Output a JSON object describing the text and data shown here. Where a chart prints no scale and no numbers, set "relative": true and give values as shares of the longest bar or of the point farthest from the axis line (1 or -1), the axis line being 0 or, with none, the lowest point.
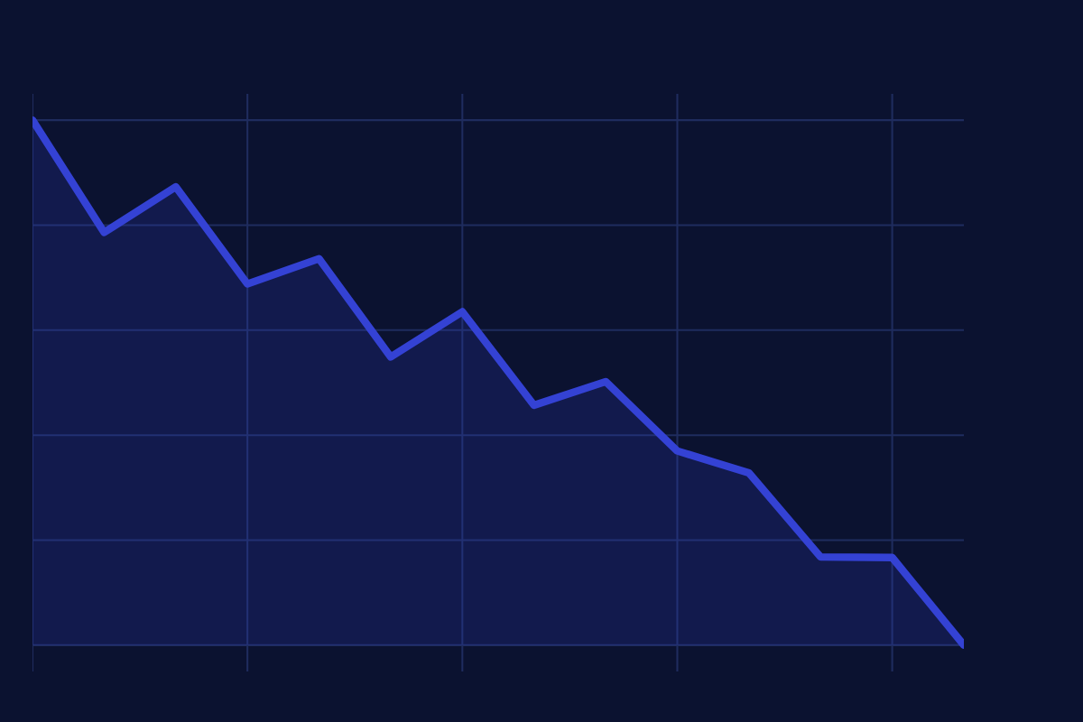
{
  "chart_data": {
    "type": "area",
    "relative": true,
    "categories": [
      null,
      null,
      null,
      null,
      null,
      null,
      null,
      null,
      null,
      null,
      null,
      null,
      null,
      null
    ],
    "series": [
      {
        "color": "#3442d4",
        "values": [
          1.0,
          0.786,
          0.873,
          0.688,
          0.736,
          0.549,
          0.635,
          0.457,
          0.502,
          0.37,
          0.328,
          0.168,
          0.167,
          0.0
        ]
      }
    ],
    "grid": true,
    "tick_labels": false,
    "legend": false,
    "marker": "none",
    "line_style": "solid"
  }
}
